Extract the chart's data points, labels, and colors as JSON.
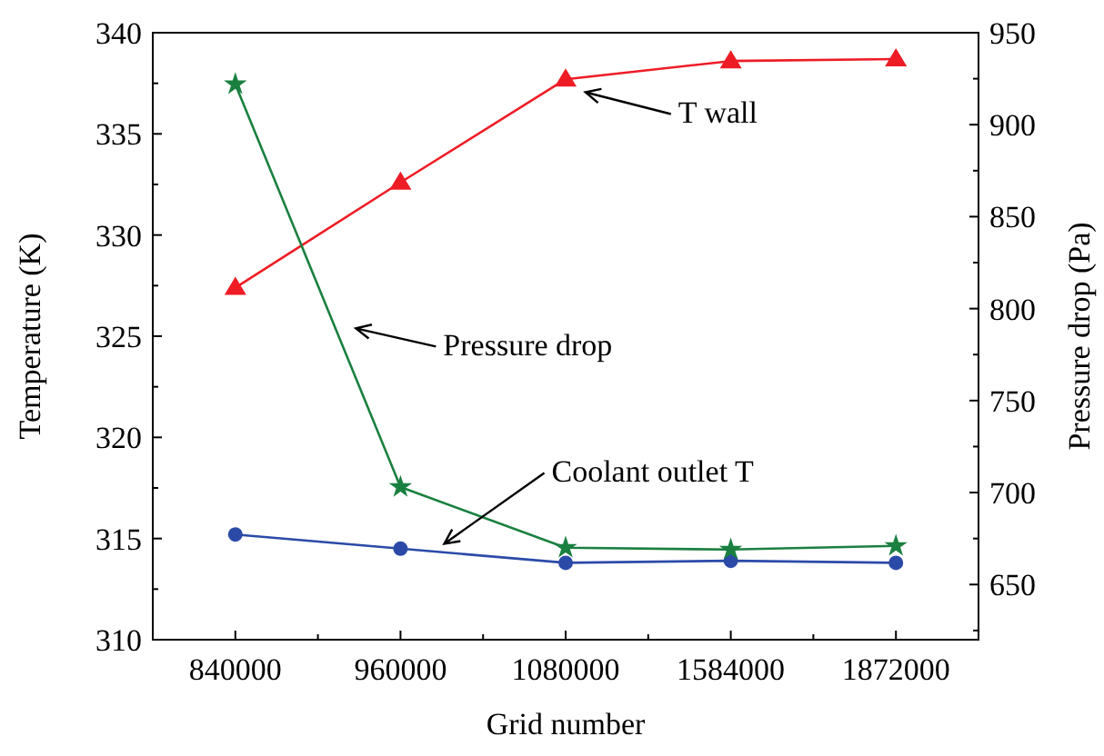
{
  "chart_data": {
    "type": "line",
    "xlabel": "Grid number",
    "ylabel": "Temperature (K)",
    "y2label": "Pressure drop (Pa)",
    "categories": [
      "840000",
      "960000",
      "1080000",
      "1584000",
      "1872000"
    ],
    "ylim": [
      310,
      340
    ],
    "yticks": [
      310,
      315,
      320,
      325,
      330,
      335,
      340
    ],
    "y2lim": [
      620,
      950
    ],
    "y2ticks": [
      650,
      700,
      750,
      800,
      850,
      900,
      950
    ],
    "series": [
      {
        "color": "#ee1c25",
        "marker": "triangle",
        "values": [
          327.4,
          332.6,
          337.7,
          338.6,
          338.7
        ]
      },
      {
        "color": "#2b4aa8",
        "marker": "circle",
        "values": [
          315.2,
          314.5,
          313.8,
          313.9,
          313.8
        ]
      },
      {
        "color": "#1a8040",
        "marker": "star",
        "axis": "y2",
        "values": [
          922,
          703,
          670,
          669,
          671
        ]
      }
    ],
    "annotations": [
      "T wall",
      "Pressure drop",
      "Coolant outlet T"
    ],
    "grid": false
  }
}
